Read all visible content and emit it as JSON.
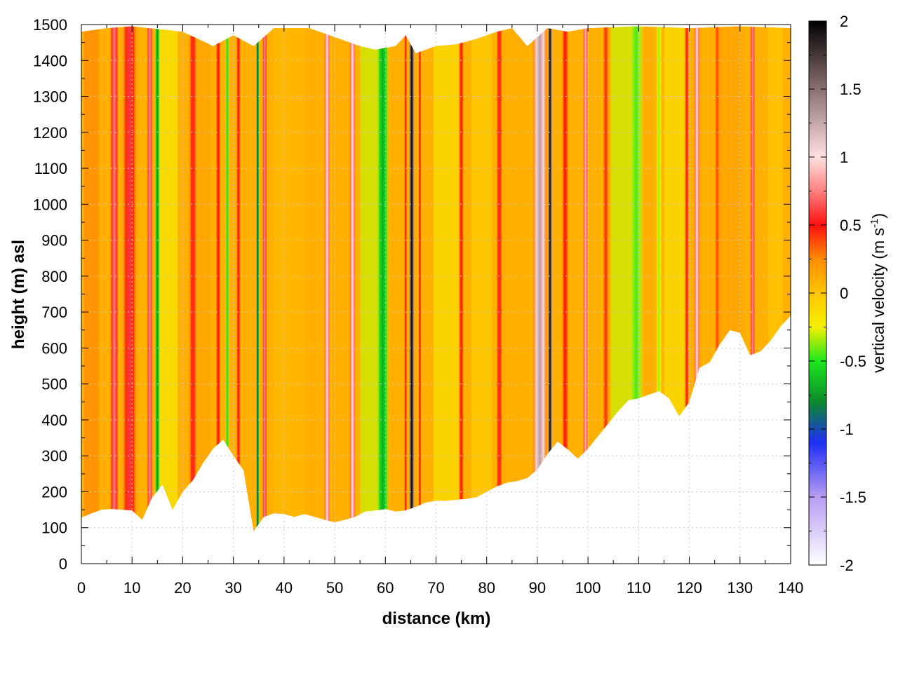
{
  "chart_data": {
    "type": "heatmap",
    "title": "",
    "xlabel": "distance (km)",
    "ylabel": "height (m) asl",
    "xlim": [
      0,
      140
    ],
    "ylim": [
      0,
      1500
    ],
    "x_ticks": [
      "0",
      "10",
      "20",
      "30",
      "40",
      "50",
      "60",
      "70",
      "80",
      "90",
      "100",
      "110",
      "120",
      "130",
      "140"
    ],
    "y_ticks": [
      "0",
      "100",
      "200",
      "300",
      "400",
      "500",
      "600",
      "700",
      "800",
      "900",
      "1000",
      "1100",
      "1200",
      "1300",
      "1400",
      "1500"
    ],
    "grid": true,
    "colorbar": {
      "label_main": "vertical velocity (m s",
      "label_sup": "-1",
      "label_close": ")",
      "range": [
        -2,
        2
      ],
      "ticks": [
        "2",
        "1.5",
        "1",
        "0.5",
        "0",
        "-0.5",
        "-1",
        "-1.5",
        "-2"
      ],
      "stops": [
        {
          "v": -2.0,
          "c": "#ffffff"
        },
        {
          "v": -1.5,
          "c": "#b79cf3"
        },
        {
          "v": -1.1,
          "c": "#1e2ef5"
        },
        {
          "v": -0.8,
          "c": "#0a8a2a"
        },
        {
          "v": -0.5,
          "c": "#1ee81e"
        },
        {
          "v": -0.25,
          "c": "#f5f000"
        },
        {
          "v": 0.0,
          "c": "#ffc600"
        },
        {
          "v": 0.25,
          "c": "#ff8c00"
        },
        {
          "v": 0.5,
          "c": "#ff1010"
        },
        {
          "v": 0.75,
          "c": "#ff8080"
        },
        {
          "v": 1.0,
          "c": "#ffe1e1"
        },
        {
          "v": 1.5,
          "c": "#8c7070"
        },
        {
          "v": 2.0,
          "c": "#000000"
        }
      ]
    },
    "terrain_height_m": [
      [
        0,
        128
      ],
      [
        2,
        140
      ],
      [
        4,
        150
      ],
      [
        6,
        152
      ],
      [
        8,
        150
      ],
      [
        10,
        148
      ],
      [
        12,
        122
      ],
      [
        14,
        185
      ],
      [
        16,
        220
      ],
      [
        18,
        150
      ],
      [
        20,
        200
      ],
      [
        22,
        232
      ],
      [
        24,
        280
      ],
      [
        26,
        320
      ],
      [
        28,
        345
      ],
      [
        30,
        300
      ],
      [
        32,
        260
      ],
      [
        34,
        90
      ],
      [
        36,
        130
      ],
      [
        38,
        140
      ],
      [
        40,
        138
      ],
      [
        42,
        130
      ],
      [
        44,
        138
      ],
      [
        46,
        130
      ],
      [
        48,
        122
      ],
      [
        50,
        115
      ],
      [
        52,
        122
      ],
      [
        54,
        130
      ],
      [
        56,
        145
      ],
      [
        58,
        148
      ],
      [
        60,
        152
      ],
      [
        62,
        145
      ],
      [
        64,
        148
      ],
      [
        66,
        158
      ],
      [
        68,
        170
      ],
      [
        70,
        175
      ],
      [
        72,
        175
      ],
      [
        74,
        178
      ],
      [
        76,
        180
      ],
      [
        78,
        185
      ],
      [
        80,
        200
      ],
      [
        82,
        215
      ],
      [
        84,
        225
      ],
      [
        86,
        230
      ],
      [
        88,
        238
      ],
      [
        90,
        262
      ],
      [
        92,
        305
      ],
      [
        94,
        340
      ],
      [
        96,
        318
      ],
      [
        98,
        292
      ],
      [
        100,
        320
      ],
      [
        102,
        355
      ],
      [
        104,
        390
      ],
      [
        106,
        425
      ],
      [
        108,
        455
      ],
      [
        110,
        460
      ],
      [
        112,
        470
      ],
      [
        114,
        480
      ],
      [
        116,
        460
      ],
      [
        118,
        410
      ],
      [
        120,
        450
      ],
      [
        122,
        545
      ],
      [
        124,
        560
      ],
      [
        126,
        610
      ],
      [
        128,
        650
      ],
      [
        130,
        642
      ],
      [
        132,
        580
      ],
      [
        134,
        590
      ],
      [
        136,
        620
      ],
      [
        138,
        660
      ],
      [
        140,
        690
      ]
    ],
    "top_height_m": [
      [
        0,
        1480
      ],
      [
        5,
        1490
      ],
      [
        10,
        1495
      ],
      [
        20,
        1480
      ],
      [
        26,
        1440
      ],
      [
        30,
        1470
      ],
      [
        34,
        1440
      ],
      [
        38,
        1490
      ],
      [
        45,
        1490
      ],
      [
        55,
        1440
      ],
      [
        58,
        1430
      ],
      [
        62,
        1440
      ],
      [
        64,
        1470
      ],
      [
        66,
        1420
      ],
      [
        70,
        1440
      ],
      [
        74,
        1445
      ],
      [
        78,
        1460
      ],
      [
        82,
        1480
      ],
      [
        85,
        1490
      ],
      [
        88,
        1440
      ],
      [
        92,
        1490
      ],
      [
        96,
        1480
      ],
      [
        100,
        1490
      ],
      [
        110,
        1495
      ],
      [
        120,
        1490
      ],
      [
        130,
        1495
      ],
      [
        140,
        1490
      ]
    ],
    "velocity_columns": [
      {
        "x": 6.5,
        "w": 1.8,
        "v": 0.75
      },
      {
        "x": 9.5,
        "w": 3.0,
        "v": 0.6
      },
      {
        "x": 13.5,
        "w": 1.2,
        "v": 0.8
      },
      {
        "x": 15.0,
        "w": 1.0,
        "v": -0.75
      },
      {
        "x": 22.0,
        "w": 1.5,
        "v": 0.55
      },
      {
        "x": 27.0,
        "w": 1.0,
        "v": 0.5
      },
      {
        "x": 28.8,
        "w": 0.8,
        "v": -0.55
      },
      {
        "x": 31.0,
        "w": 0.9,
        "v": 0.5
      },
      {
        "x": 34.8,
        "w": 0.6,
        "v": -1.0
      },
      {
        "x": 36.2,
        "w": 1.0,
        "v": 0.8
      },
      {
        "x": 48.5,
        "w": 1.2,
        "v": 1.0
      },
      {
        "x": 53.5,
        "w": 1.2,
        "v": 1.0
      },
      {
        "x": 59.5,
        "w": 2.5,
        "v": -0.7
      },
      {
        "x": 64.0,
        "w": 0.6,
        "v": 0.5
      },
      {
        "x": 65.2,
        "w": 1.2,
        "v": 2.0
      },
      {
        "x": 66.8,
        "w": 0.6,
        "v": 0.5
      },
      {
        "x": 75.0,
        "w": 1.0,
        "v": 0.5
      },
      {
        "x": 82.5,
        "w": 1.2,
        "v": 0.55
      },
      {
        "x": 90.5,
        "w": 3.0,
        "v": 1.3
      },
      {
        "x": 92.5,
        "w": 1.0,
        "v": 2.0
      },
      {
        "x": 95.5,
        "w": 1.4,
        "v": 0.5
      },
      {
        "x": 99.5,
        "w": 1.0,
        "v": 0.9
      },
      {
        "x": 103.5,
        "w": 1.2,
        "v": 0.45
      },
      {
        "x": 109.5,
        "w": 3.0,
        "v": -0.45
      },
      {
        "x": 114.0,
        "w": 1.2,
        "v": -0.35
      },
      {
        "x": 119.5,
        "w": 0.8,
        "v": 0.5
      },
      {
        "x": 121.5,
        "w": 1.2,
        "v": 1.0
      },
      {
        "x": 125.5,
        "w": 1.0,
        "v": 0.4
      },
      {
        "x": 132.5,
        "w": 1.0,
        "v": 0.8
      }
    ]
  }
}
